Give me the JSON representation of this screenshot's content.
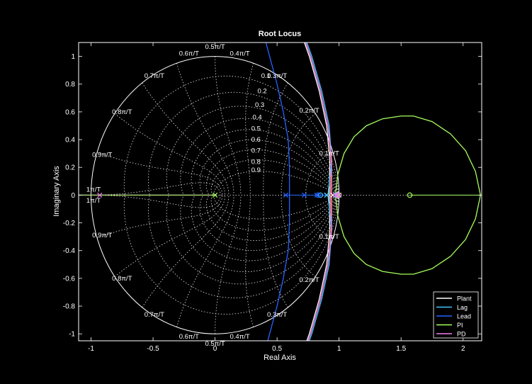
{
  "chart_data": {
    "type": "line",
    "title": "Root Locus",
    "xlabel": "Real Axis",
    "ylabel": "Imaginary Axis",
    "xlim": [
      -1.1,
      2.15
    ],
    "ylim": [
      -1.05,
      1.1
    ],
    "xticks": [
      -1,
      -0.5,
      0,
      0.5,
      1,
      1.5,
      2
    ],
    "xtick_labels": [
      "-1",
      "-0.5",
      "0",
      "0.5",
      "1",
      "1.5",
      "2"
    ],
    "yticks": [
      -1,
      -0.8,
      -0.6,
      -0.4,
      -0.2,
      0,
      0.2,
      0.4,
      0.6,
      0.8,
      1
    ],
    "ytick_labels": [
      "-1",
      "-0.8",
      "-0.6",
      "-0.4",
      "-0.2",
      "0",
      "0.2",
      "0.4",
      "0.6",
      "0.8",
      "1"
    ],
    "grid": "zgrid",
    "unit_circle": true,
    "damping_labels": [
      "0.1",
      "0.2",
      "0.3",
      "0.4",
      "0.5",
      "0.6",
      "0.7",
      "0.8",
      "0.9"
    ],
    "damping_label_points": [
      [
        0.41,
        0.86
      ],
      [
        0.38,
        0.75
      ],
      [
        0.36,
        0.65
      ],
      [
        0.34,
        0.56
      ],
      [
        0.33,
        0.48
      ],
      [
        0.33,
        0.4
      ],
      [
        0.33,
        0.32
      ],
      [
        0.33,
        0.24
      ],
      [
        0.33,
        0.18
      ]
    ],
    "nat_freq_labels": [
      "0.1π/T",
      "0.2π/T",
      "0.3π/T",
      "0.4π/T",
      "0.5π/T",
      "0.6π/T",
      "0.7π/T",
      "0.8π/T",
      "0.9π/T",
      "1π/T"
    ],
    "nat_freq_label_points": [
      [
        0.92,
        0.3
      ],
      [
        0.76,
        0.61
      ],
      [
        0.5,
        0.86
      ],
      [
        0.2,
        1.02
      ],
      [
        0.0,
        1.07
      ],
      [
        -0.21,
        1.02
      ],
      [
        -0.49,
        0.86
      ],
      [
        -0.75,
        0.6
      ],
      [
        -0.91,
        0.29
      ],
      [
        -0.98,
        0.04
      ]
    ],
    "legend_location": "bottom-right",
    "series": [
      {
        "name": "Plant",
        "color": "#ffffff",
        "poles": [
          0.9,
          0.95
        ],
        "locus_upper": [
          [
            0.92,
            0.0
          ],
          [
            0.925,
            0.25
          ],
          [
            0.9,
            0.5
          ],
          [
            0.84,
            0.75
          ],
          [
            0.76,
            1.0
          ],
          [
            0.68,
            1.2
          ]
        ]
      },
      {
        "name": "Lag",
        "color": "#3ec3ff",
        "poles": [
          0.9,
          0.98
        ],
        "zeros": [
          0.85
        ],
        "locus_upper": [
          [
            0.91,
            0.0
          ],
          [
            0.94,
            0.25
          ],
          [
            0.92,
            0.5
          ],
          [
            0.86,
            0.75
          ],
          [
            0.78,
            1.0
          ],
          [
            0.7,
            1.2
          ]
        ]
      },
      {
        "name": "Lead",
        "color": "#2563ff",
        "poles": [
          0.57,
          0.72,
          0.82
        ],
        "zeros": [
          0.83
        ],
        "locus_upper": [
          [
            0.6,
            0.0
          ],
          [
            0.6,
            0.2
          ],
          [
            0.59,
            0.4
          ],
          [
            0.55,
            0.6
          ],
          [
            0.5,
            0.8
          ],
          [
            0.44,
            1.0
          ],
          [
            0.38,
            1.2
          ]
        ]
      },
      {
        "name": "PI",
        "color": "#a6ff5c",
        "poles": [
          0.0,
          1.0
        ],
        "zeros": [
          1.57
        ],
        "locus_upper": [
          [
            0.97,
            0.0
          ],
          [
            0.99,
            0.15
          ],
          [
            1.04,
            0.3
          ],
          [
            1.12,
            0.42
          ],
          [
            1.22,
            0.5
          ],
          [
            1.35,
            0.55
          ],
          [
            1.5,
            0.57
          ],
          [
            1.6,
            0.57
          ],
          [
            1.75,
            0.53
          ],
          [
            1.9,
            0.44
          ],
          [
            2.02,
            0.32
          ],
          [
            2.1,
            0.17
          ],
          [
            2.14,
            0.0
          ]
        ]
      },
      {
        "name": "PD",
        "color": "#f07cf0",
        "poles": [
          -0.93,
          0.97,
          0.99
        ],
        "zeros": [
          1.0
        ],
        "locus_upper": [
          [
            0.94,
            0.0
          ],
          [
            0.94,
            0.25
          ],
          [
            0.91,
            0.5
          ],
          [
            0.85,
            0.75
          ],
          [
            0.77,
            1.0
          ],
          [
            0.69,
            1.2
          ]
        ]
      }
    ],
    "extra_locus_color": "#ff7a4a",
    "extra_locus_upper": [
      [
        0.93,
        0.0
      ],
      [
        0.935,
        0.25
      ],
      [
        0.91,
        0.5
      ],
      [
        0.85,
        0.75
      ],
      [
        0.77,
        1.0
      ],
      [
        0.69,
        1.2
      ]
    ]
  }
}
